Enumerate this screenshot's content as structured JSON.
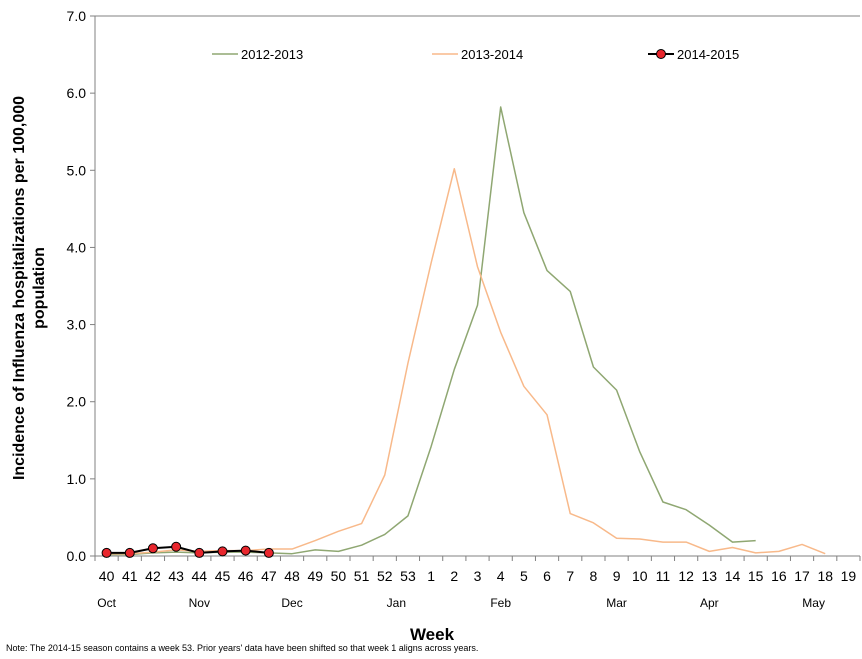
{
  "chart_data": {
    "type": "line",
    "xlabel": "Week",
    "ylabel_line1": "Incidence of Influenza hospitalizations per 100,000",
    "ylabel_line2": "population",
    "ylim": [
      0,
      7
    ],
    "yticks": [
      "0.0",
      "1.0",
      "2.0",
      "3.0",
      "4.0",
      "5.0",
      "6.0",
      "7.0"
    ],
    "categories": [
      "40",
      "41",
      "42",
      "43",
      "44",
      "45",
      "46",
      "47",
      "48",
      "49",
      "50",
      "51",
      "52",
      "53",
      "1",
      "2",
      "3",
      "4",
      "5",
      "6",
      "7",
      "8",
      "9",
      "10",
      "11",
      "12",
      "13",
      "14",
      "15",
      "16",
      "17",
      "18",
      "19"
    ],
    "months": [
      {
        "label": "Oct",
        "index": 0
      },
      {
        "label": "Nov",
        "index": 4
      },
      {
        "label": "Dec",
        "index": 8
      },
      {
        "label": "Jan",
        "index": 12.5
      },
      {
        "label": "Feb",
        "index": 17
      },
      {
        "label": "Mar",
        "index": 22
      },
      {
        "label": "Apr",
        "index": 26
      },
      {
        "label": "May",
        "index": 30.5
      }
    ],
    "grid": false,
    "legend_position": "top",
    "series": [
      {
        "name": "2012-2013",
        "color": "#8fa772",
        "marker": false,
        "values": [
          0.02,
          0.02,
          0.04,
          0.05,
          0.04,
          0.05,
          0.05,
          0.04,
          0.03,
          0.08,
          0.06,
          0.14,
          0.28,
          0.52,
          1.42,
          2.42,
          3.25,
          5.82,
          4.45,
          3.7,
          3.43,
          2.45,
          2.15,
          1.35,
          0.7,
          0.6,
          0.4,
          0.18,
          0.2,
          null,
          null,
          null,
          null
        ]
      },
      {
        "name": "2013-2014",
        "color": "#f8b98a",
        "marker": false,
        "values": [
          0.03,
          0.03,
          0.05,
          0.08,
          0.06,
          0.07,
          0.07,
          0.09,
          0.09,
          0.2,
          0.32,
          0.42,
          1.05,
          2.5,
          3.8,
          5.02,
          3.75,
          2.9,
          2.2,
          1.83,
          0.55,
          0.43,
          0.23,
          0.22,
          0.18,
          0.18,
          0.06,
          0.11,
          0.04,
          0.06,
          0.15,
          0.03,
          null
        ]
      },
      {
        "name": "2014-2015",
        "color": "#000000",
        "marker": true,
        "marker_color": "#e8262d",
        "values": [
          0.04,
          0.04,
          0.1,
          0.12,
          0.04,
          0.06,
          0.07,
          0.04,
          null,
          null,
          null,
          null,
          null,
          null,
          null,
          null,
          null,
          null,
          null,
          null,
          null,
          null,
          null,
          null,
          null,
          null,
          null,
          null,
          null,
          null,
          null,
          null,
          null
        ]
      }
    ]
  },
  "note": "Note: The 2014-15 season contains a week 53.  Prior years' data have been shifted so that week 1 aligns across years."
}
